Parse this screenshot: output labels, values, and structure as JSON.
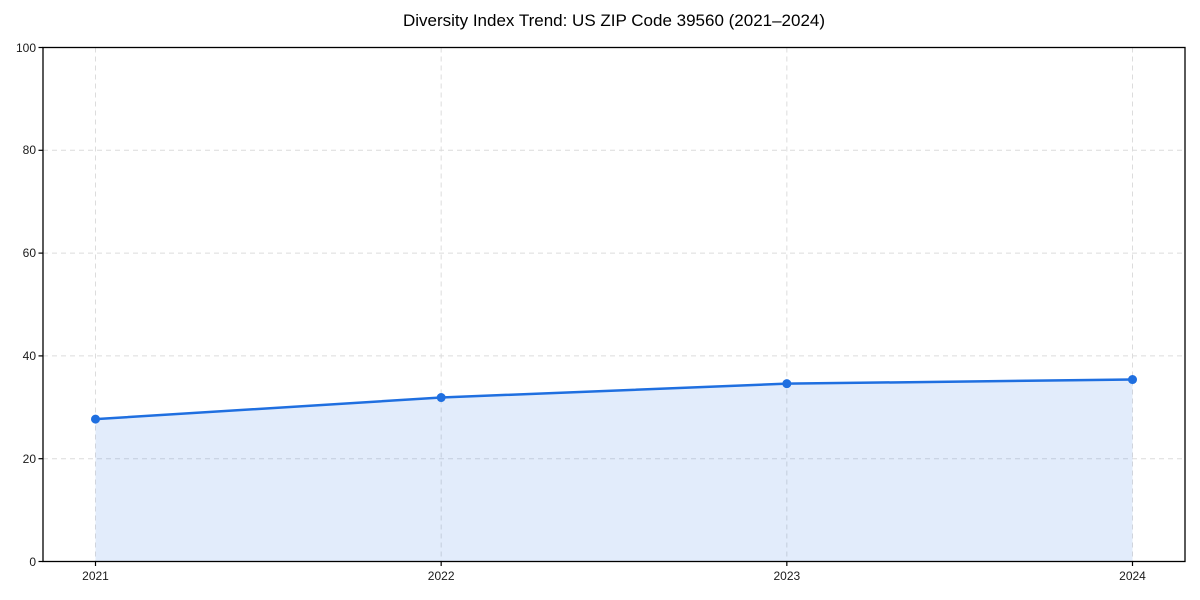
{
  "chart_data": {
    "type": "area",
    "title": "Diversity Index Trend: US ZIP Code 39560 (2021–2024)",
    "x": [
      "2021",
      "2022",
      "2023",
      "2024"
    ],
    "series": [
      {
        "name": "Diversity Index",
        "values": [
          27.7,
          31.9,
          34.6,
          35.4
        ]
      }
    ],
    "xlabel": "",
    "ylabel": "",
    "ylim": [
      0,
      100
    ],
    "yticks": [
      0,
      20,
      40,
      60,
      80,
      100
    ],
    "grid": true,
    "legend": "none",
    "colors": {
      "line": "#1f6fe0",
      "marker": "#1f6fe0",
      "fill": "rgba(31, 111, 224, 0.13)",
      "grid": "#dcdcdc",
      "axis": "#000000",
      "tick_text": "#1a1a1a",
      "background": "#ffffff"
    }
  }
}
